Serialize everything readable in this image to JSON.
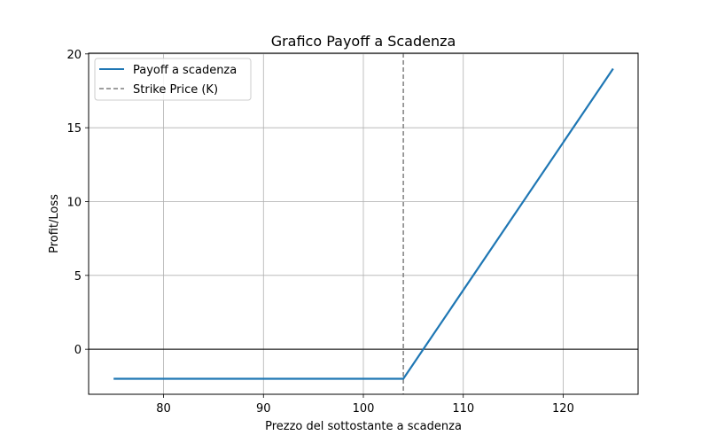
{
  "chart_data": {
    "type": "line",
    "title": "Grafico Payoff a Scadenza",
    "xlabel": "Prezzo del sottostante a scadenza",
    "ylabel": "Profit/Loss",
    "xlim": [
      72.5,
      127.5
    ],
    "ylim": [
      -3.05,
      20.05
    ],
    "xticks": [
      80,
      90,
      100,
      110,
      120
    ],
    "yticks": [
      0,
      5,
      10,
      15,
      20
    ],
    "grid": true,
    "legend_position": "top-left",
    "series": [
      {
        "name": "Payoff a scadenza",
        "style": "solid",
        "color": "#1f77b4",
        "x": [
          75,
          104,
          125
        ],
        "y": [
          -2,
          -2,
          19
        ]
      }
    ],
    "reference_lines": [
      {
        "name": "Strike Price (K)",
        "orientation": "vertical",
        "value": 104,
        "style": "dashed",
        "color": "#7f7f7f"
      },
      {
        "name": "",
        "orientation": "horizontal",
        "value": 0,
        "style": "solid",
        "color": "#000000"
      }
    ]
  }
}
